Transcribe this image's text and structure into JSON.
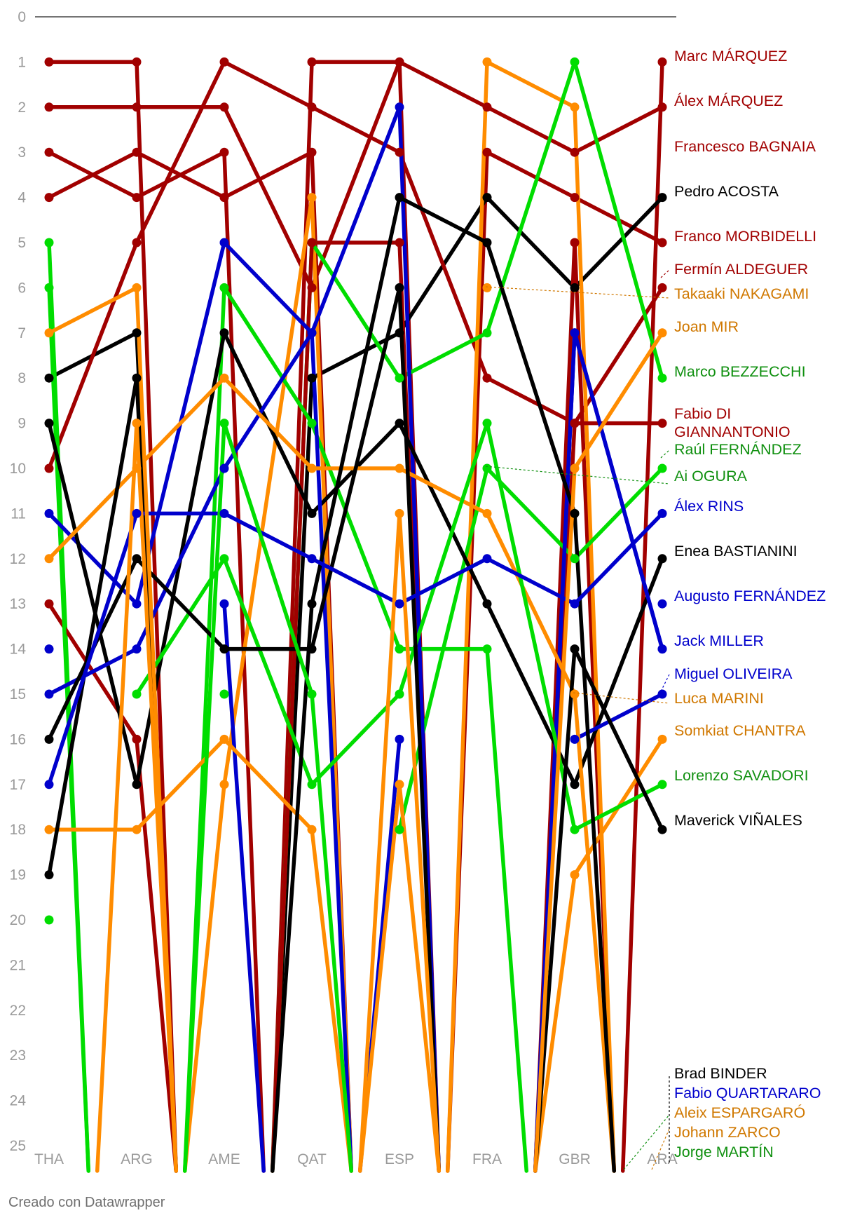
{
  "chart_data": {
    "type": "line",
    "title": "",
    "xlabel": "",
    "ylabel": "",
    "y_reversed": true,
    "ylim": [
      0,
      25
    ],
    "y_ticks": [
      0,
      1,
      2,
      3,
      4,
      5,
      6,
      7,
      8,
      9,
      10,
      11,
      12,
      13,
      14,
      15,
      16,
      17,
      18,
      19,
      20,
      21,
      22,
      23,
      24,
      25
    ],
    "categories": [
      "THA",
      "ARG",
      "AME",
      "QAT",
      "ESP",
      "FRA",
      "GBR",
      "ARA"
    ],
    "grid": false,
    "legend": "direct labels on the right",
    "series": [
      {
        "name": "Marc MÁRQUEZ",
        "color": "#a10000",
        "values": [
          1,
          1,
          25,
          1,
          1,
          25,
          25,
          1
        ]
      },
      {
        "name": "Álex MÁRQUEZ",
        "color": "#a10000",
        "values": [
          2,
          2,
          2,
          6,
          1,
          2,
          3,
          2
        ]
      },
      {
        "name": "Francesco BAGNAIA",
        "color": "#a10000",
        "values": [
          3,
          4,
          3,
          25,
          25,
          3,
          4,
          5
        ]
      },
      {
        "name": "Pedro ACOSTA",
        "color": "#000000",
        "values": [
          8,
          7,
          25,
          8,
          7,
          4,
          6,
          4
        ]
      },
      {
        "name": "Franco MORBIDELLI",
        "color": "#a10000",
        "values": [
          4,
          3,
          4,
          3,
          25,
          25,
          5,
          25
        ]
      },
      {
        "name": "Fermín ALDEGUER",
        "color": "#a10000",
        "values": [
          10,
          5,
          1,
          2,
          3,
          8,
          9,
          6
        ]
      },
      {
        "name": "Takaaki NAKAGAMI",
        "color": "#ff8c00",
        "values": [
          null,
          null,
          null,
          null,
          null,
          6,
          null,
          null
        ]
      },
      {
        "name": "Joan MIR",
        "color": "#ff8c00",
        "values": [
          25,
          25,
          17,
          4,
          25,
          1,
          2,
          25
        ]
      },
      {
        "name": "Marco BEZZECCHI",
        "color": "#00dd00",
        "values": [
          5,
          25,
          25,
          5,
          8,
          7,
          1,
          8
        ]
      },
      {
        "name": "Fabio DI GIANNANTONIO",
        "color": "#a10000",
        "values": [
          13,
          16,
          25,
          5,
          5,
          25,
          9,
          9
        ]
      },
      {
        "name": "Raúl FERNÁNDEZ",
        "color": "#00dd00",
        "values": [
          20,
          null,
          15,
          null,
          18,
          10,
          12,
          10
        ]
      },
      {
        "name": "Ai OGURA",
        "color": "#00dd00",
        "values": [
          6,
          25,
          6,
          9,
          14,
          14,
          25,
          25
        ]
      },
      {
        "name": "Álex RINS",
        "color": "#0000cc",
        "values": [
          11,
          13,
          5,
          7,
          2,
          25,
          7,
          14
        ]
      },
      {
        "name": "Enea BASTIANINI",
        "color": "#000000",
        "values": [
          9,
          17,
          7,
          11,
          9,
          13,
          17,
          12
        ]
      },
      {
        "name": "Augusto FERNÁNDEZ",
        "color": "#0000cc",
        "values": [
          14,
          null,
          13,
          25,
          16,
          null,
          null,
          13
        ]
      },
      {
        "name": "Jack MILLER",
        "color": "#0000cc",
        "values": [
          15,
          14,
          10,
          7,
          25,
          25,
          7,
          14
        ]
      },
      {
        "name": "Miguel OLIVEIRA",
        "color": "#0000cc",
        "values": [
          null,
          null,
          null,
          null,
          null,
          null,
          16,
          15
        ]
      },
      {
        "name": "Luca MARINI",
        "color": "#ff8c00",
        "values": [
          12,
          10,
          8,
          10,
          10,
          11,
          15,
          25
        ]
      },
      {
        "name": "Somkiat CHANTRA",
        "color": "#ff8c00",
        "values": [
          18,
          18,
          16,
          18,
          25,
          25,
          19,
          16
        ]
      },
      {
        "name": "Lorenzo SAVADORI",
        "color": "#00dd00",
        "values": [
          null,
          15,
          12,
          17,
          15,
          9,
          18,
          17
        ]
      },
      {
        "name": "Maverick VIÑALES",
        "color": "#000000",
        "values": [
          16,
          12,
          14,
          14,
          6,
          25,
          14,
          18
        ]
      },
      {
        "name": "Brad BINDER",
        "color": "#000000",
        "values": [
          19,
          8,
          25,
          13,
          4,
          5,
          11,
          25
        ]
      },
      {
        "name": "Fabio QUARTARARO",
        "color": "#0000cc",
        "values": [
          17,
          11,
          11,
          12,
          13,
          12,
          13,
          11
        ]
      },
      {
        "name": "Aleix ESPARGARÓ",
        "color": "#ff8c00",
        "values": [
          7,
          6,
          25,
          25,
          11,
          25,
          10,
          7
        ]
      },
      {
        "name": "Johann ZARCO",
        "color": "#ff8c00",
        "values": [
          25,
          9,
          25,
          25,
          17,
          25,
          25,
          25
        ]
      },
      {
        "name": "Jorge MARTÍN",
        "color": "#00dd00",
        "values": [
          25,
          25,
          9,
          15,
          25,
          25,
          25,
          25
        ]
      }
    ],
    "right_labels": [
      {
        "lines": [
          "Marc MÁRQUEZ"
        ],
        "color": "#a10000"
      },
      {
        "lines": [
          "Álex MÁRQUEZ"
        ],
        "color": "#a10000"
      },
      {
        "lines": [
          "Francesco BAGNAIA"
        ],
        "color": "#a10000"
      },
      {
        "lines": [
          "Pedro ACOSTA"
        ],
        "color": "#000000"
      },
      {
        "lines": [
          "Franco MORBIDELLI"
        ],
        "color": "#a10000"
      },
      {
        "lines": [
          "Fermín ALDEGUER"
        ],
        "color": "#a10000"
      },
      {
        "lines": [
          "Takaaki NAKAGAMI"
        ],
        "color": "#d07800"
      },
      {
        "lines": [
          "Joan MIR"
        ],
        "color": "#d07800"
      },
      {
        "lines": [
          "Marco BEZZECCHI"
        ],
        "color": "#109010"
      },
      {
        "lines": [
          "Fabio DI",
          "GIANNANTONIO"
        ],
        "color": "#a10000"
      },
      {
        "lines": [
          "Raúl FERNÁNDEZ"
        ],
        "color": "#109010"
      },
      {
        "lines": [
          "Ai OGURA"
        ],
        "color": "#109010"
      },
      {
        "lines": [
          "Álex RINS"
        ],
        "color": "#0000cc"
      },
      {
        "lines": [
          "Enea BASTIANINI"
        ],
        "color": "#000000"
      },
      {
        "lines": [
          "Augusto FERNÁNDEZ"
        ],
        "color": "#0000cc"
      },
      {
        "lines": [
          "Jack MILLER"
        ],
        "color": "#0000cc"
      },
      {
        "lines": [
          "Miguel OLIVEIRA"
        ],
        "color": "#0000cc"
      },
      {
        "lines": [
          "Luca MARINI"
        ],
        "color": "#d07800"
      },
      {
        "lines": [
          "Somkiat CHANTRA"
        ],
        "color": "#d07800"
      },
      {
        "lines": [
          "Lorenzo SAVADORI"
        ],
        "color": "#109010"
      },
      {
        "lines": [
          "Maverick VIÑALES"
        ],
        "color": "#000000"
      },
      {
        "lines": [
          "Brad BINDER"
        ],
        "color": "#000000"
      },
      {
        "lines": [
          "Fabio QUARTARARO"
        ],
        "color": "#0000cc"
      },
      {
        "lines": [
          "Aleix ESPARGARÓ"
        ],
        "color": "#d07800"
      },
      {
        "lines": [
          "Johann ZARCO"
        ],
        "color": "#d07800"
      },
      {
        "lines": [
          "Jorge MARTÍN"
        ],
        "color": "#109010"
      }
    ]
  },
  "credit": "Creado con Datawrapper"
}
